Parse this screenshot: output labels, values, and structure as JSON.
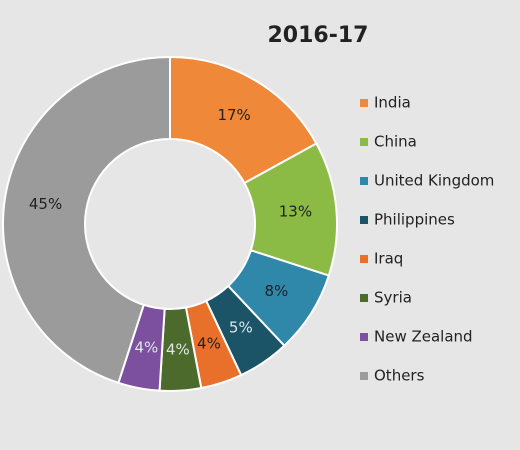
{
  "chart_data": {
    "type": "donut",
    "title": "2016-17",
    "categories": [
      "India",
      "China",
      "United Kingdom",
      "Philippines",
      "Iraq",
      "Syria",
      "New Zealand",
      "Others"
    ],
    "values": [
      17,
      13,
      8,
      5,
      4,
      4,
      4,
      45
    ],
    "value_labels": [
      "17%",
      "13%",
      "8%",
      "5%",
      "4%",
      "4%",
      "4%",
      "45%"
    ],
    "colors": [
      "#f0883a",
      "#8cbb45",
      "#2f88aa",
      "#1b5467",
      "#e8702b",
      "#4b6a2b",
      "#7c4f9f",
      "#9b9b9b"
    ],
    "legend": "right"
  }
}
